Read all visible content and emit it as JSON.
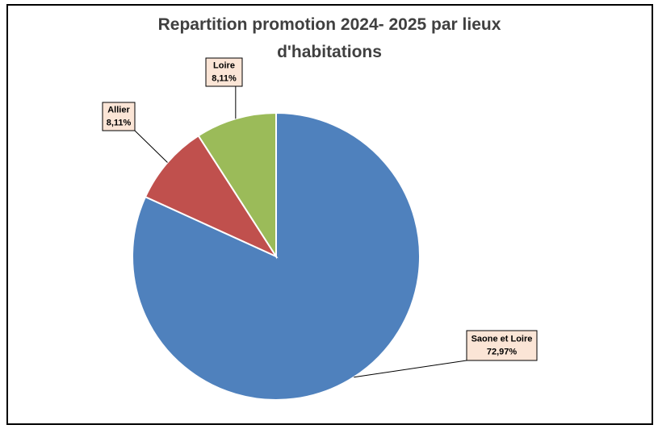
{
  "chart_data": {
    "type": "pie",
    "title": "Repartition promotion 2024- 2025 par lieux d'habitations",
    "categories": [
      "Saone et Loire",
      "Allier",
      "Loire"
    ],
    "values": [
      72.97,
      8.11,
      8.11
    ],
    "value_labels": [
      "72,97%",
      "8,11%",
      "8,11%"
    ],
    "colors": [
      "#4f81bd",
      "#c0504d",
      "#9bbb59"
    ]
  }
}
